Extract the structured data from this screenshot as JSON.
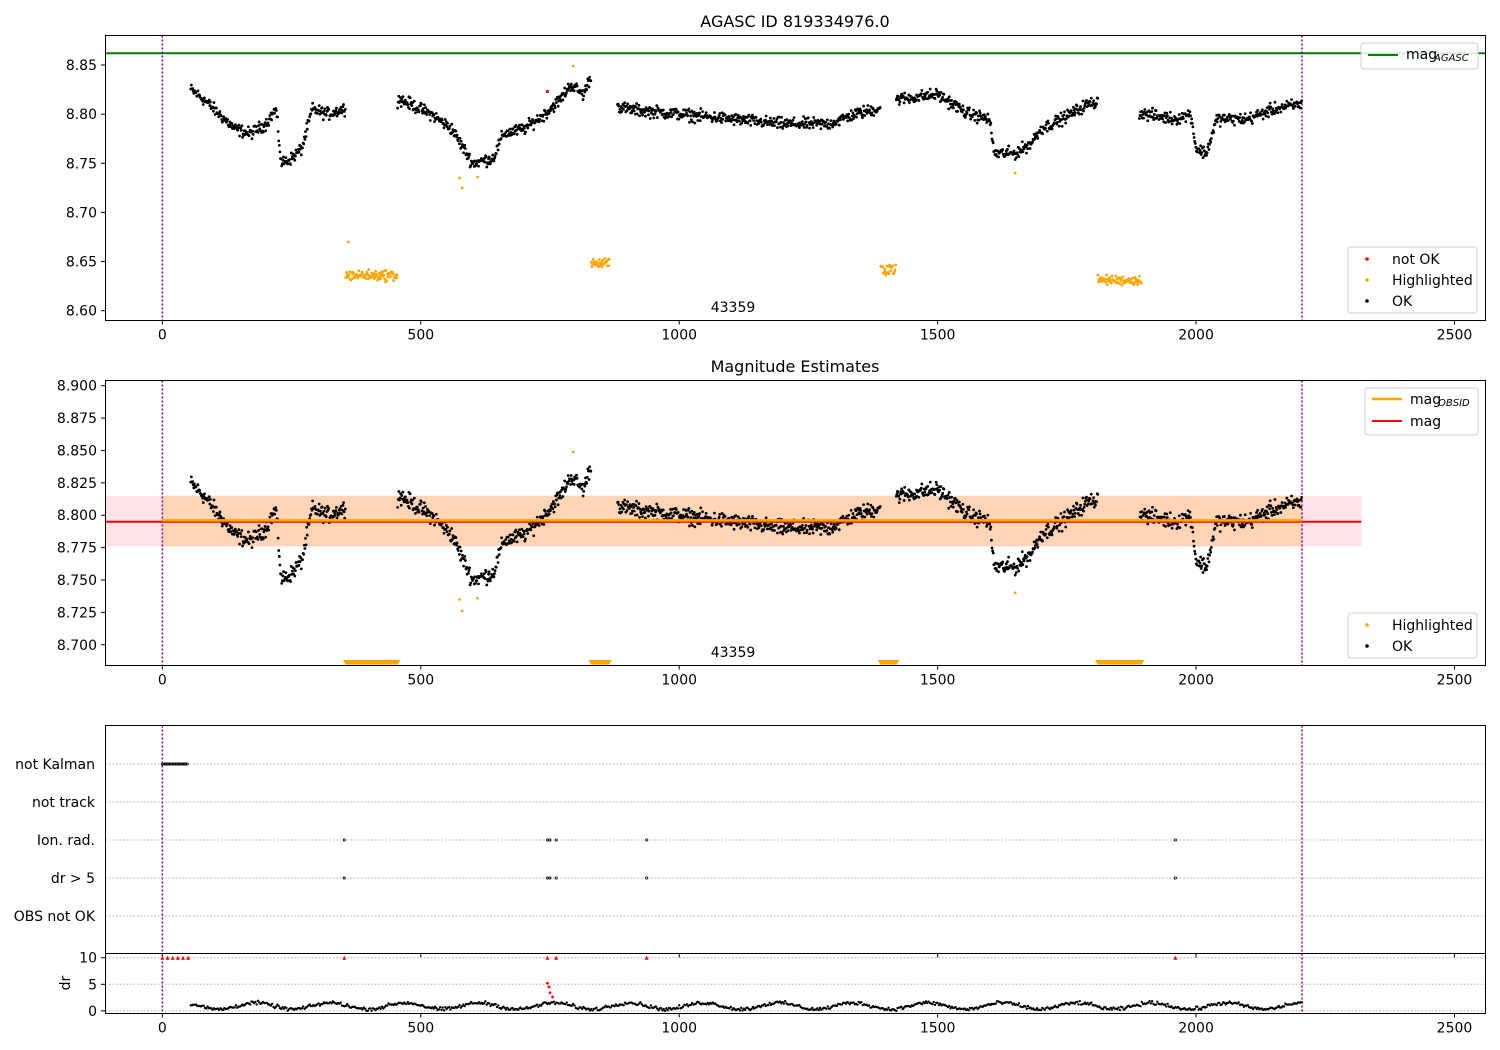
{
  "chart_data": [
    {
      "type": "scatter",
      "title": "AGASC ID 819334976.0",
      "annotation": "43359",
      "xlim": [
        -110,
        2560
      ],
      "ylim": [
        8.59,
        8.88
      ],
      "xticks": [
        0,
        500,
        1000,
        1500,
        2000,
        2500
      ],
      "yticks": [
        8.6,
        8.65,
        8.7,
        8.75,
        8.8,
        8.85
      ],
      "ytick_labels": [
        "8.60",
        "8.65",
        "8.70",
        "8.75",
        "8.80",
        "8.85"
      ],
      "vlines": [
        0,
        2205
      ],
      "hline": {
        "name": "mag",
        "subscript": "AGASC",
        "value": 8.862,
        "color": "#008000"
      },
      "series_legend": [
        {
          "name": "not OK",
          "color": "#ff0000"
        },
        {
          "name": "Highlighted",
          "color": "#ffa500"
        },
        {
          "name": "OK",
          "color": "#000000"
        }
      ],
      "ok_curve": [
        [
          55,
          8.825
        ],
        [
          80,
          8.815
        ],
        [
          110,
          8.8
        ],
        [
          140,
          8.785
        ],
        [
          170,
          8.78
        ],
        [
          200,
          8.79
        ],
        [
          220,
          8.805
        ],
        [
          230,
          8.75
        ],
        [
          250,
          8.755
        ],
        [
          270,
          8.765
        ],
        [
          290,
          8.805
        ],
        [
          320,
          8.8
        ],
        [
          350,
          8.805
        ],
        [
          460,
          8.815
        ],
        [
          520,
          8.8
        ],
        [
          560,
          8.785
        ],
        [
          600,
          8.75
        ],
        [
          640,
          8.755
        ],
        [
          660,
          8.78
        ],
        [
          700,
          8.785
        ],
        [
          740,
          8.8
        ],
        [
          770,
          8.815
        ],
        [
          790,
          8.83
        ],
        [
          815,
          8.82
        ],
        [
          830,
          8.84
        ],
        [
          870,
          8.81
        ],
        [
          900,
          8.805
        ],
        [
          1000,
          8.8
        ],
        [
          1100,
          8.795
        ],
        [
          1200,
          8.79
        ],
        [
          1290,
          8.79
        ],
        [
          1340,
          8.8
        ],
        [
          1380,
          8.805
        ],
        [
          1420,
          8.815
        ],
        [
          1500,
          8.82
        ],
        [
          1560,
          8.8
        ],
        [
          1600,
          8.795
        ],
        [
          1610,
          8.76
        ],
        [
          1650,
          8.76
        ],
        [
          1680,
          8.77
        ],
        [
          1700,
          8.785
        ],
        [
          1740,
          8.795
        ],
        [
          1790,
          8.81
        ],
        [
          1830,
          8.815
        ],
        [
          1900,
          8.8
        ],
        [
          1960,
          8.795
        ],
        [
          1990,
          8.8
        ],
        [
          2000,
          8.765
        ],
        [
          2020,
          8.76
        ],
        [
          2040,
          8.795
        ],
        [
          2100,
          8.795
        ],
        [
          2150,
          8.805
        ],
        [
          2200,
          8.81
        ]
      ],
      "ok_gaps": [
        [
          355,
          455
        ],
        [
          830,
          880
        ],
        [
          1390,
          1420
        ],
        [
          1810,
          1890
        ]
      ],
      "highlighted_clusters": [
        {
          "x": [
            355,
            455
          ],
          "y": 8.636,
          "spread": 0.008
        },
        {
          "x": [
            830,
            865
          ],
          "y": 8.648,
          "spread": 0.008
        },
        {
          "x": [
            1390,
            1420
          ],
          "y": 8.643,
          "spread": 0.01
        },
        {
          "x": [
            1810,
            1895
          ],
          "y": 8.631,
          "spread": 0.007
        }
      ],
      "highlighted_points": [
        [
          360,
          8.67
        ],
        [
          575,
          8.735
        ],
        [
          580,
          8.725
        ],
        [
          610,
          8.736
        ],
        [
          795,
          8.849
        ],
        [
          1650,
          8.74
        ]
      ],
      "not_ok_points": [
        [
          745,
          8.823
        ]
      ]
    },
    {
      "type": "scatter",
      "title": "Magnitude Estimates",
      "annotation": "43359",
      "xlim": [
        -110,
        2560
      ],
      "ylim": [
        8.684,
        8.904
      ],
      "xticks": [
        0,
        500,
        1000,
        1500,
        2000,
        2500
      ],
      "yticks": [
        8.7,
        8.725,
        8.75,
        8.775,
        8.8,
        8.825,
        8.85,
        8.875,
        8.9
      ],
      "ytick_labels": [
        "8.700",
        "8.725",
        "8.750",
        "8.775",
        "8.800",
        "8.825",
        "8.850",
        "8.875",
        "8.900"
      ],
      "vlines": [
        0,
        2205
      ],
      "mag_line": {
        "name": "mag",
        "value": 8.795,
        "x": [
          -110,
          2320
        ],
        "color": "#ff0000"
      },
      "mag_obsid": {
        "name": "mag",
        "subscript": "OBSID",
        "value": 8.796,
        "x": [
          0,
          2205
        ],
        "color": "#ffa500"
      },
      "band": {
        "lo": 8.776,
        "hi": 8.815,
        "x": [
          -110,
          2320
        ]
      },
      "series_legend": [
        {
          "name": "Highlighted",
          "color": "#ffa500"
        },
        {
          "name": "OK",
          "color": "#000000"
        }
      ],
      "highlighted_bottom_ranges": [
        [
          355,
          455
        ],
        [
          830,
          865
        ],
        [
          1390,
          1420
        ],
        [
          1810,
          1895
        ]
      ],
      "highlighted_points": [
        [
          575,
          8.735
        ],
        [
          580,
          8.726
        ],
        [
          610,
          8.736
        ],
        [
          795,
          8.849
        ],
        [
          1650,
          8.74
        ]
      ]
    },
    {
      "type": "scatter",
      "categories": [
        "not Kalman",
        "not track",
        "Ion. rad.",
        "dr > 5",
        "OBS not OK"
      ],
      "xlim": [
        -110,
        2560
      ],
      "xticks": [
        0,
        500,
        1000,
        1500,
        2000,
        2500
      ],
      "vlines": [
        0,
        2205
      ],
      "flags": {
        "not Kalman": [
          [
            0,
            50
          ]
        ],
        "Ion. rad.": [
          352,
          745,
          750,
          762,
          937,
          1960
        ],
        "dr > 5": [
          352,
          745,
          750,
          762,
          937,
          1960
        ]
      }
    },
    {
      "type": "scatter",
      "ylabel": "dr",
      "xlim": [
        -110,
        2560
      ],
      "ylim": [
        -0.5,
        10.8
      ],
      "xticks": [
        0,
        500,
        1000,
        1500,
        2000,
        2500
      ],
      "yticks": [
        0,
        5,
        10
      ],
      "ytick_labels": [
        "0",
        "5",
        "10"
      ],
      "vlines": [
        0,
        2205
      ],
      "capped_points": [
        0,
        10,
        20,
        30,
        40,
        50,
        352,
        745,
        762,
        937,
        1960
      ],
      "outliers": [
        [
          745,
          5.2
        ],
        [
          748,
          4.5
        ],
        [
          750,
          3.4
        ],
        [
          755,
          2.6
        ]
      ]
    }
  ]
}
